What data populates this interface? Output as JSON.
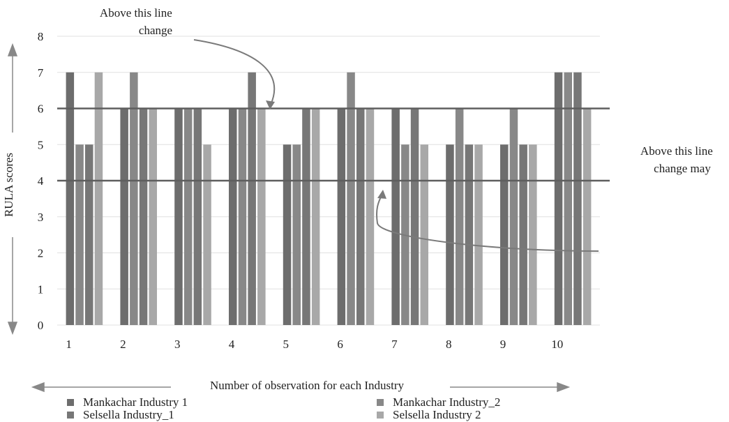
{
  "chart_data": {
    "type": "bar",
    "title": "",
    "xlabel": "Number of observation for each Industry",
    "ylabel": "RULA scores",
    "ylim": [
      0,
      8
    ],
    "yticks": [
      0,
      1,
      2,
      3,
      4,
      5,
      6,
      7,
      8
    ],
    "categories": [
      "1",
      "2",
      "3",
      "4",
      "5",
      "6",
      "7",
      "8",
      "9",
      "10"
    ],
    "series": [
      {
        "name": "Mankachar Industry 1",
        "color": "#6d6d6d",
        "values": [
          7,
          6,
          6,
          6,
          5,
          6,
          6,
          5,
          5,
          7
        ]
      },
      {
        "name": "Mankachar Industry_2",
        "color": "#888888",
        "values": [
          5,
          7,
          6,
          6,
          5,
          7,
          5,
          6,
          6,
          7
        ]
      },
      {
        "name": "Selsella Industry_1",
        "color": "#777777",
        "values": [
          5,
          6,
          6,
          7,
          6,
          6,
          6,
          5,
          5,
          7
        ]
      },
      {
        "name": "Selsella Industry 2",
        "color": "#a8a8a8",
        "values": [
          7,
          6,
          5,
          6,
          6,
          6,
          5,
          5,
          5,
          6
        ]
      }
    ],
    "reference_lines": [
      {
        "value": 6,
        "label": "Above this line change"
      },
      {
        "value": 4,
        "label": "Above this line change may"
      }
    ],
    "grid": true,
    "legend_position": "bottom"
  }
}
